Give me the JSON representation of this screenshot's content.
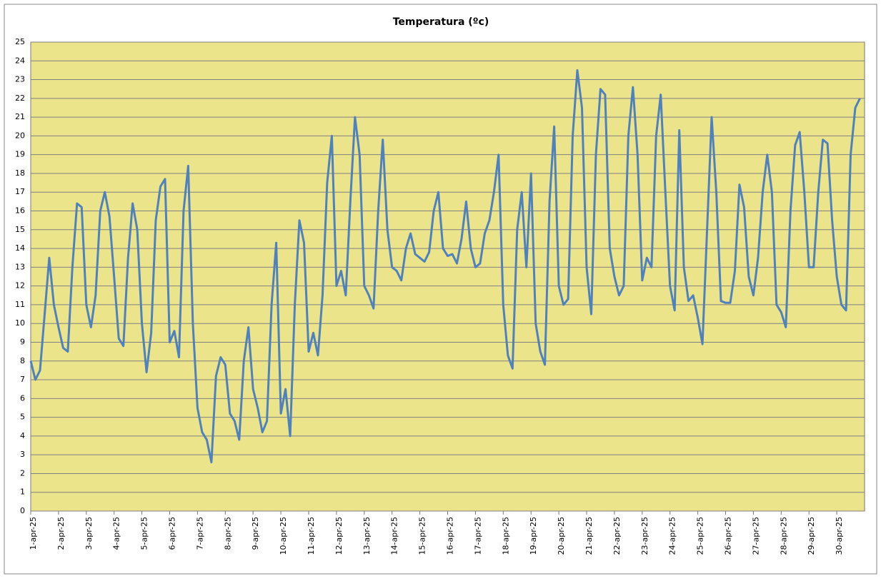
{
  "chart_data": {
    "type": "line",
    "title": "Temperatura (ºc)",
    "categories": [
      "1-apr-25",
      "2-apr-25",
      "3-apr-25",
      "4-apr-25",
      "5-apr-25",
      "6-apr-25",
      "7-apr-25",
      "8-apr-25",
      "9-apr-25",
      "10-apr-25",
      "11-apr-25",
      "12-apr-25",
      "13-apr-25",
      "14-apr-25",
      "15-apr-25",
      "16-apr-25",
      "17-apr-25",
      "18-apr-25",
      "19-apr-25",
      "20-apr-25",
      "21-apr-25",
      "22-apr-25",
      "23-apr-25",
      "24-apr-25",
      "25-apr-25",
      "26-apr-25",
      "27-apr-25",
      "28-apr-25",
      "29-apr-25",
      "30-apr-25"
    ],
    "values": [
      [
        8,
        7,
        7.5,
        10.5,
        13.5,
        11
      ],
      [
        9.8,
        8.7,
        8.5,
        13,
        16.4,
        16.2
      ],
      [
        11,
        9.8,
        11.5,
        16,
        17,
        15.7
      ],
      [
        12.5,
        9.2,
        8.8,
        13.5,
        16.4,
        15
      ],
      [
        10,
        7.4,
        9.5,
        15.5,
        17.3,
        17.7
      ],
      [
        9,
        9.6,
        8.2,
        16,
        18.4,
        10
      ],
      [
        5.5,
        4.2,
        3.8,
        2.6,
        7.2,
        8.2
      ],
      [
        7.8,
        5.2,
        4.8,
        3.8,
        8,
        9.8
      ],
      [
        6.5,
        5.5,
        4.2,
        4.8,
        11,
        14.3
      ],
      [
        5.2,
        6.5,
        4,
        11,
        15.5,
        14.3
      ],
      [
        8.5,
        9.5,
        8.3,
        11.5,
        17.5,
        20
      ],
      [
        12,
        12.8,
        11.5,
        16.5,
        21,
        19
      ],
      [
        12,
        11.5,
        10.8,
        16,
        19.8,
        15
      ],
      [
        13,
        12.8,
        12.3,
        14,
        14.8,
        13.7
      ],
      [
        13.5,
        13.3,
        13.8,
        16,
        17,
        14
      ],
      [
        13.6,
        13.7,
        13.2,
        14.5,
        16.5,
        14
      ],
      [
        13,
        13.2,
        14.8,
        15.5,
        17,
        19
      ],
      [
        11,
        8.3,
        7.6,
        15,
        17,
        13
      ],
      [
        18,
        10,
        8.5,
        7.8,
        16.5,
        20.5
      ],
      [
        12,
        11,
        11.3,
        20,
        23.5,
        21.5
      ],
      [
        13,
        10.5,
        19,
        22.5,
        22.2,
        14
      ],
      [
        12.5,
        11.5,
        12,
        20,
        22.6,
        19
      ],
      [
        12.3,
        13.5,
        13,
        20,
        22.2,
        17
      ],
      [
        12,
        10.7,
        20.3,
        13,
        11.2,
        11.5
      ],
      [
        10.3,
        8.9,
        15,
        21,
        17,
        11.2
      ],
      [
        11.1,
        11.1,
        12.8,
        17.4,
        16.2,
        12.5
      ],
      [
        11.5,
        13.5,
        17,
        19,
        17,
        11
      ],
      [
        10.6,
        9.8,
        16,
        19.5,
        20.2,
        17
      ],
      [
        13,
        13,
        17,
        19.8,
        19.6,
        15.5
      ],
      [
        12.5,
        11,
        10.7,
        19,
        21.5,
        22
      ]
    ],
    "color": "#4f81bd",
    "ylim": [
      0,
      25
    ],
    "yticks": [
      0,
      1,
      2,
      3,
      4,
      5,
      6,
      7,
      8,
      9,
      10,
      11,
      12,
      13,
      14,
      15,
      16,
      17,
      18,
      19,
      20,
      21,
      22,
      23,
      24,
      25
    ],
    "grid": true
  }
}
